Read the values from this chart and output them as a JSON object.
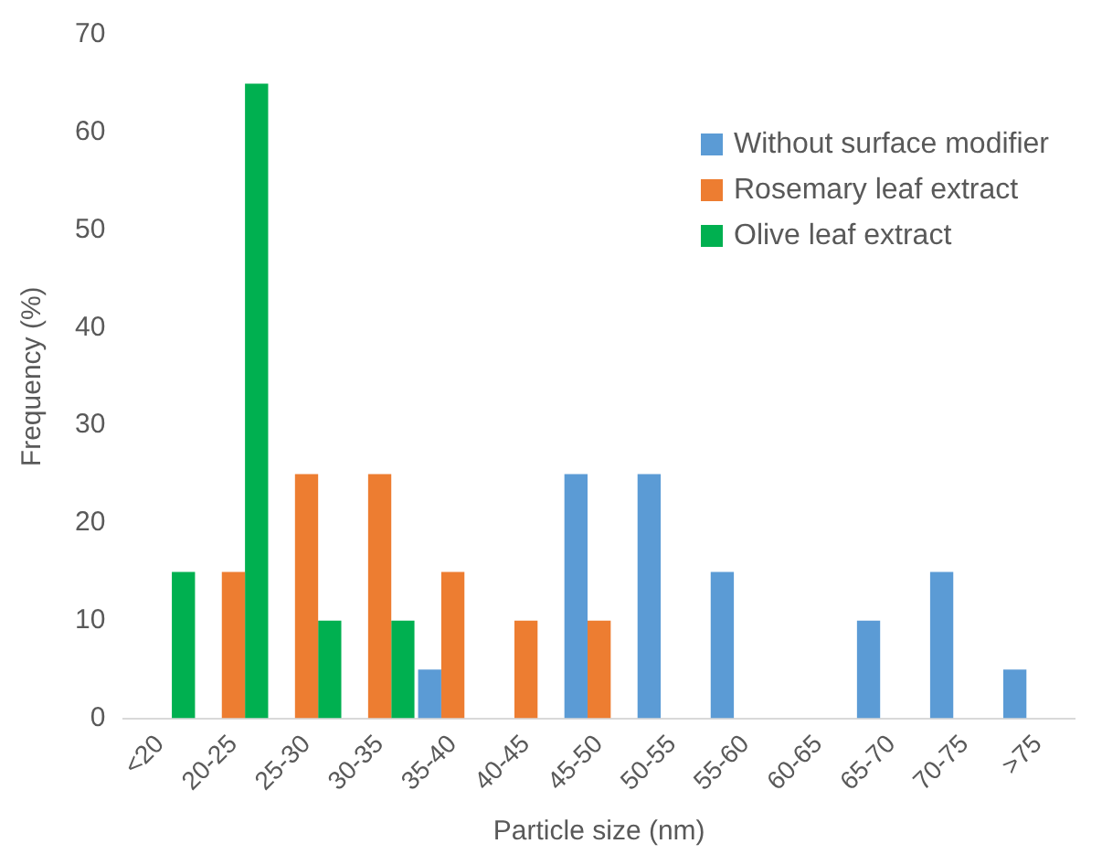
{
  "chart_data": {
    "type": "bar",
    "xlabel": "Particle size (nm)",
    "ylabel": "Frequency (%)",
    "categories": [
      "<20",
      "20-25",
      "25-30",
      "30-35",
      "35-40",
      "40-45",
      "45-50",
      "50-55",
      "55-60",
      "60-65",
      "65-70",
      "70-75",
      ">75"
    ],
    "series": [
      {
        "name": "Without surface modifier",
        "color": "#5b9bd5",
        "values": [
          null,
          null,
          null,
          null,
          5,
          null,
          25,
          25,
          15,
          null,
          10,
          15,
          5
        ]
      },
      {
        "name": "Rosemary leaf extract",
        "color": "#ed7d31",
        "values": [
          null,
          15,
          25,
          25,
          15,
          10,
          10,
          null,
          null,
          null,
          null,
          null,
          null
        ]
      },
      {
        "name": "Olive leaf extract",
        "color": "#00b050",
        "values": [
          15,
          65,
          10,
          10,
          null,
          null,
          null,
          null,
          null,
          null,
          null,
          null,
          null
        ]
      }
    ],
    "ylim": [
      0,
      70
    ],
    "yticks": [
      0,
      10,
      20,
      30,
      40,
      50,
      60,
      70
    ],
    "grid": false,
    "legend": "top right"
  }
}
